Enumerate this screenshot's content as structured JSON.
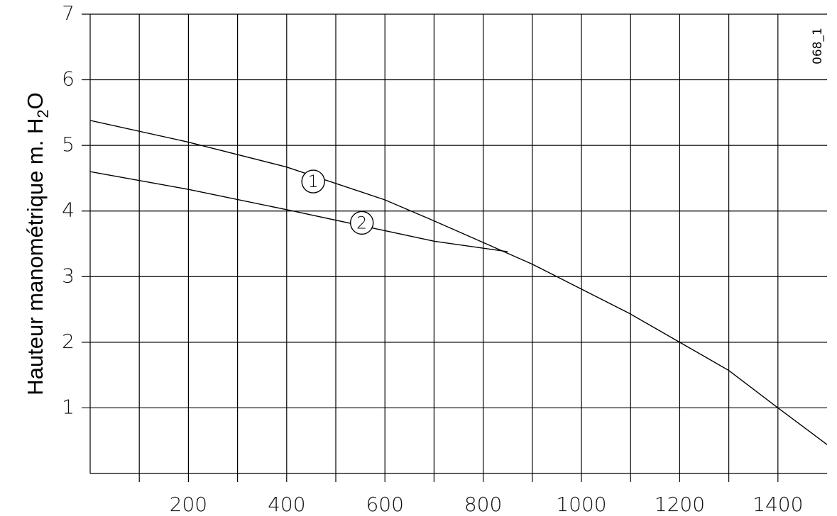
{
  "chart_data": {
    "type": "line",
    "ylabel_parts": [
      "Hauteur manométrique  m. H",
      "2",
      "O"
    ],
    "code": "068_1",
    "xlim": [
      0,
      1500
    ],
    "ylim": [
      0,
      7
    ],
    "xticks": [
      200,
      400,
      600,
      800,
      1000,
      1200,
      1400
    ],
    "xgrid": [
      100,
      200,
      300,
      400,
      500,
      600,
      700,
      800,
      900,
      1000,
      1100,
      1200,
      1300,
      1400
    ],
    "yticks": [
      1,
      2,
      3,
      4,
      5,
      6,
      7
    ],
    "grid": true,
    "series": [
      {
        "name": "1",
        "color": "#000000",
        "label_x": 454,
        "label_y": 4.45,
        "x": [
          0,
          200,
          400,
          600,
          700,
          800,
          900,
          1000,
          1100,
          1200,
          1300,
          1400,
          1500
        ],
        "values": [
          5.38,
          5.05,
          4.67,
          4.17,
          3.85,
          3.52,
          3.19,
          2.81,
          2.43,
          2.0,
          1.57,
          1.0,
          0.44
        ]
      },
      {
        "name": "2",
        "color": "#000000",
        "label_x": 553,
        "label_y": 3.82,
        "x": [
          0,
          200,
          400,
          600,
          700,
          850
        ],
        "values": [
          4.6,
          4.33,
          4.02,
          3.7,
          3.54,
          3.38
        ]
      }
    ]
  }
}
